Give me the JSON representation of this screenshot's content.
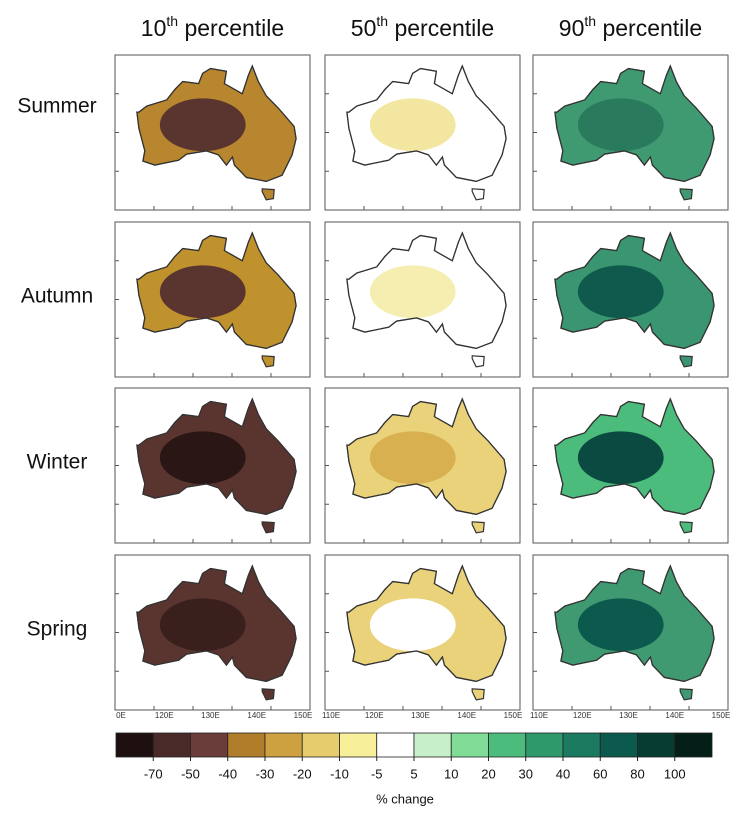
{
  "columns": [
    {
      "number": "10",
      "suffix": "th",
      "text": " percentile"
    },
    {
      "number": "50",
      "suffix": "th",
      "text": " percentile"
    },
    {
      "number": "90",
      "suffix": "th",
      "text": " percentile"
    }
  ],
  "rows": [
    "Summer",
    "Autumn",
    "Winter",
    "Spring"
  ],
  "longitude_labels": [
    [
      "0E",
      "120E",
      "130E",
      "140E",
      "150E"
    ],
    [
      "110E",
      "120E",
      "130E",
      "140E",
      "150E"
    ],
    [
      "110E",
      "120E",
      "130E",
      "140E",
      "150E"
    ]
  ],
  "panels": [
    [
      {
        "fill": "#b8862e",
        "blob": "#5a3530"
      },
      {
        "fill": "#ffffff",
        "blob": "#f2e6a0"
      },
      {
        "fill": "#3f9a72",
        "blob": "#2a7a5e"
      }
    ],
    [
      {
        "fill": "#c0922e",
        "blob": "#5a3530"
      },
      {
        "fill": "#ffffff",
        "blob": "#f5eeb0"
      },
      {
        "fill": "#3a9670",
        "blob": "#0f5a4c"
      }
    ],
    [
      {
        "fill": "#5a3530",
        "blob": "#2a1614"
      },
      {
        "fill": "#ead27a",
        "blob": "#d8b050"
      },
      {
        "fill": "#4cbc7c",
        "blob": "#0a4a40"
      }
    ],
    [
      {
        "fill": "#5a3530",
        "blob": "#3a201c"
      },
      {
        "fill": "#ead27a",
        "blob": "#ffffff"
      },
      {
        "fill": "#3f9a72",
        "blob": "#0c5a4e"
      }
    ]
  ],
  "colorbar": {
    "colors": [
      "#1e1010",
      "#4a2a28",
      "#6b3d3a",
      "#b07e2a",
      "#cda040",
      "#e6cc6a",
      "#f7ef9a",
      "#ffffff",
      "#c8f0c8",
      "#80dc96",
      "#4cbc7c",
      "#2e9a6c",
      "#1c7a60",
      "#0c5a4e",
      "#063c32",
      "#041e18"
    ],
    "ticks": [
      -70,
      -50,
      -40,
      -30,
      -20,
      -10,
      -5,
      5,
      10,
      20,
      30,
      40,
      60,
      80,
      100
    ],
    "label": "% change"
  }
}
